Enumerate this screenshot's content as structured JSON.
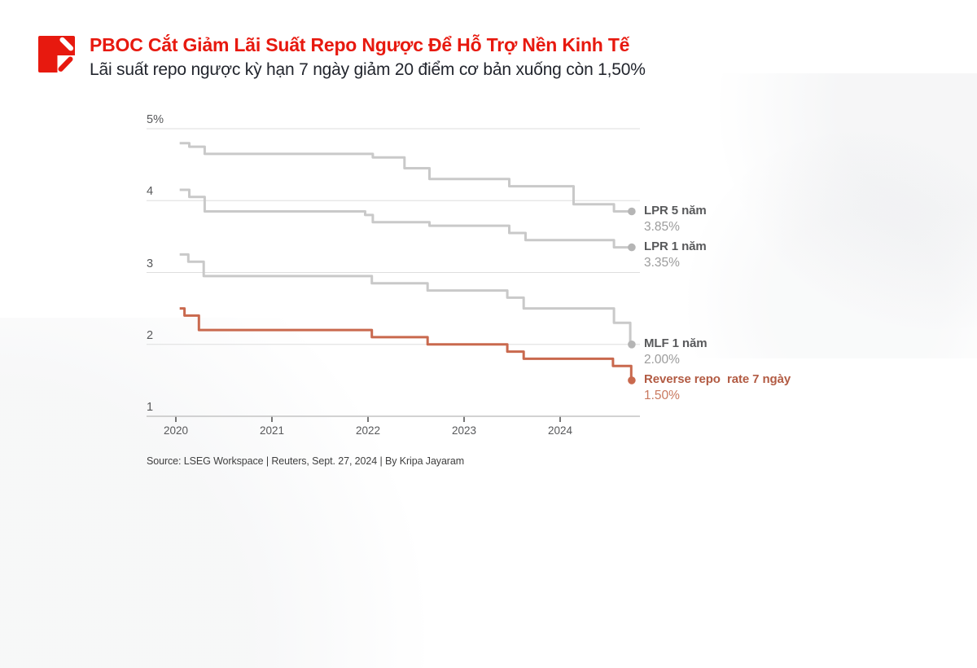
{
  "theme": {
    "accent": "#e7190f",
    "text_dark": "#23262e",
    "axis_text": "#57585a",
    "gridline": "#dedede",
    "baseline": "#c4c4c4",
    "gray_label": "#58595b",
    "gray_value": "#9c9c9c",
    "orange_label": "#b25b43",
    "orange_value": "#c9795f",
    "source_text": "#404040"
  },
  "logo": {
    "name": "reuters-graphics-logo",
    "color": "#e7190f"
  },
  "chart_data": {
    "type": "line",
    "style": "step-after",
    "title": "PBOC Cắt Giảm Lãi Suất Repo Ngược Để Hỗ Trợ Nền Kinh Tế",
    "subtitle": "Lãi suất repo ngược kỳ hạn 7 ngày giảm 20 điểm cơ bản xuống còn 1,50%",
    "xlabel": "",
    "ylabel": "",
    "ylim": [
      1,
      5
    ],
    "xlim": [
      2019.7,
      2024.83
    ],
    "grid": true,
    "legend_position": "right",
    "y_ticks": [
      {
        "label": "5%",
        "value": 5
      },
      {
        "label": "4",
        "value": 4
      },
      {
        "label": "3",
        "value": 3
      },
      {
        "label": "2",
        "value": 2
      },
      {
        "label": "1",
        "value": 1
      }
    ],
    "x_ticks": [
      {
        "label": "2020",
        "value": 2020
      },
      {
        "label": "2021",
        "value": 2021
      },
      {
        "label": "2022",
        "value": 2022
      },
      {
        "label": "2023",
        "value": 2023
      },
      {
        "label": "2024",
        "value": 2024
      }
    ],
    "series": [
      {
        "name": "LPR 5 năm",
        "label_value": "3.85%",
        "color": "#c9c9c9",
        "dot_color": "#b5b5b5",
        "points": [
          [
            2020.04,
            4.8
          ],
          [
            2020.14,
            4.75
          ],
          [
            2020.3,
            4.65
          ],
          [
            2022.05,
            4.6
          ],
          [
            2022.38,
            4.45
          ],
          [
            2022.64,
            4.3
          ],
          [
            2023.47,
            4.2
          ],
          [
            2024.14,
            3.95
          ],
          [
            2024.56,
            3.85
          ],
          [
            2024.745,
            3.85
          ]
        ]
      },
      {
        "name": "LPR 1 năm",
        "label_value": "3.35%",
        "color": "#c9c9c9",
        "dot_color": "#b5b5b5",
        "points": [
          [
            2020.04,
            4.15
          ],
          [
            2020.14,
            4.05
          ],
          [
            2020.3,
            3.85
          ],
          [
            2021.97,
            3.8
          ],
          [
            2022.05,
            3.7
          ],
          [
            2022.64,
            3.65
          ],
          [
            2023.47,
            3.55
          ],
          [
            2023.64,
            3.45
          ],
          [
            2024.56,
            3.35
          ],
          [
            2024.745,
            3.35
          ]
        ]
      },
      {
        "name": "MLF 1 năm",
        "label_value": "2.00%",
        "color": "#c9c9c9",
        "dot_color": "#b5b5b5",
        "points": [
          [
            2020.04,
            3.25
          ],
          [
            2020.13,
            3.15
          ],
          [
            2020.29,
            2.95
          ],
          [
            2022.04,
            2.85
          ],
          [
            2022.62,
            2.75
          ],
          [
            2023.45,
            2.65
          ],
          [
            2023.62,
            2.5
          ],
          [
            2024.56,
            2.3
          ],
          [
            2024.73,
            2.0
          ],
          [
            2024.745,
            2.0
          ]
        ]
      },
      {
        "name": "Reverse repo  rate 7 ngày",
        "label_value": "1.50%",
        "color": "#c9694e",
        "dot_color": "#c9694e",
        "points": [
          [
            2020.04,
            2.5
          ],
          [
            2020.09,
            2.4
          ],
          [
            2020.24,
            2.2
          ],
          [
            2022.04,
            2.1
          ],
          [
            2022.62,
            2.0
          ],
          [
            2023.45,
            1.9
          ],
          [
            2023.62,
            1.8
          ],
          [
            2024.55,
            1.7
          ],
          [
            2024.74,
            1.5
          ],
          [
            2024.745,
            1.5
          ]
        ]
      }
    ],
    "source": "Source: LSEG Workspace | Reuters, Sept. 27, 2024 | By Kripa Jayaram"
  }
}
